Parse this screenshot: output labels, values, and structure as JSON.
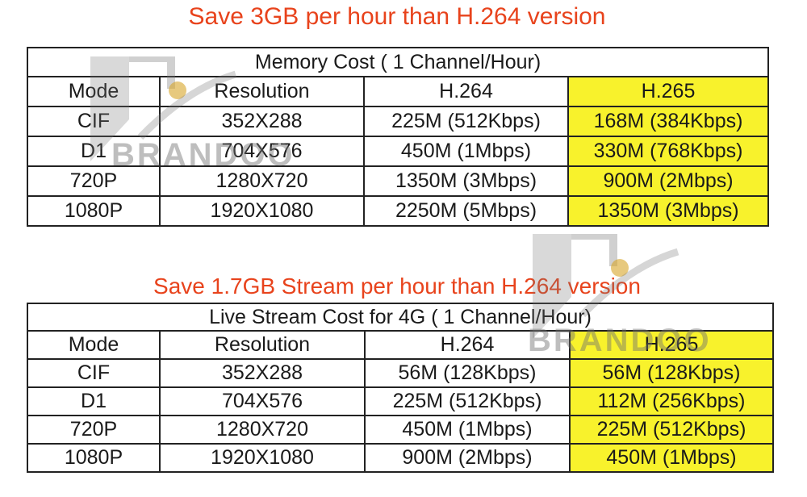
{
  "headings": {
    "top": "Save 3GB per hour than H.264 version",
    "middle": "Save 1.7GB Stream per hour than H.264 version"
  },
  "memory_table": {
    "title": "Memory Cost ( 1 Channel/Hour)",
    "columns": [
      "Mode",
      "Resolution",
      "H.264",
      "H.265"
    ],
    "rows": [
      [
        "CIF",
        "352X288",
        "225M (512Kbps)",
        "168M (384Kbps)"
      ],
      [
        "D1",
        "704X576",
        "450M (1Mbps)",
        "330M (768Kbps)"
      ],
      [
        "720P",
        "1280X720",
        "1350M (3Mbps)",
        "900M (2Mbps)"
      ],
      [
        "1080P",
        "1920X1080",
        "2250M (5Mbps)",
        "1350M (3Mbps)"
      ]
    ]
  },
  "stream_table": {
    "title": "Live Stream Cost for 4G ( 1 Channel/Hour)",
    "columns": [
      "Mode",
      "Resolution",
      "H.264",
      "H.265"
    ],
    "rows": [
      [
        "CIF",
        "352X288",
        "56M (128Kbps)",
        "56M (128Kbps)"
      ],
      [
        "D1",
        "704X576",
        "225M (512Kbps)",
        "112M (256Kbps)"
      ],
      [
        "720P",
        "1280X720",
        "450M (1Mbps)",
        "225M (512Kbps)"
      ],
      [
        "1080P",
        "1920X1080",
        "900M (2Mbps)",
        "450M (1Mbps)"
      ]
    ]
  },
  "watermark": {
    "text": "BRANDOO"
  },
  "colors": {
    "heading": "#e8431c",
    "highlight": "#f8f22c",
    "border": "#222222"
  }
}
